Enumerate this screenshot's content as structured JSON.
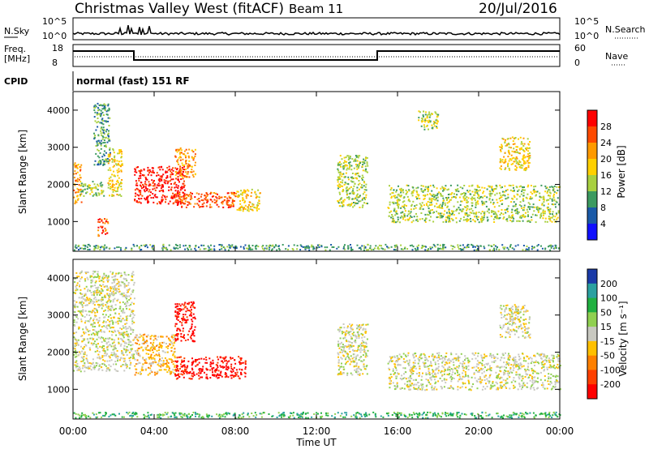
{
  "header": {
    "title": "Christmas Valley West (fitACF)",
    "beam": "Beam 11",
    "date": "20/Jul/2016"
  },
  "nsky_panel": {
    "left_label": "N.Sky",
    "right_label": "N.Search",
    "left_ticks": [
      "10^5",
      "10^0"
    ],
    "right_ticks": [
      "10^5",
      "10^0"
    ]
  },
  "freq_panel": {
    "left_label_1": "Freq.",
    "left_label_2": "[MHz]",
    "right_label": "Nave",
    "left_ticks": [
      "18",
      "8"
    ],
    "right_ticks": [
      "60",
      "0"
    ],
    "freq_steps": [
      {
        "t0": 0,
        "t1": 3.0,
        "level": "high"
      },
      {
        "t0": 3.0,
        "t1": 15.0,
        "level": "low"
      },
      {
        "t0": 15.0,
        "t1": 24.0,
        "level": "high"
      }
    ]
  },
  "cpid": {
    "label": "CPID",
    "text": "normal (fast) 151 RF"
  },
  "chart_data": [
    {
      "type": "heatmap",
      "ylabel": "Slant Range [km]",
      "yticks": [
        "4000",
        "3000",
        "2000",
        "1000"
      ],
      "ytick_values": [
        4000,
        3000,
        2000,
        1000
      ],
      "ylim": [
        200,
        4500
      ],
      "xlim": [
        0,
        24
      ],
      "colorbar_label": "Power [dB]",
      "colorbar_ticks": [
        "28",
        "24",
        "20",
        "16",
        "12",
        "8",
        "4"
      ],
      "colorbar_colors": [
        "#ff0000",
        "#ff4a00",
        "#ff9a00",
        "#ffd000",
        "#a8d040",
        "#3c9a60",
        "#1a5aa8",
        "#1010ff"
      ],
      "regions": [
        {
          "t0": 0.0,
          "t1": 0.4,
          "r0": 1500,
          "r1": 2600,
          "c": 2
        },
        {
          "t0": 0.3,
          "t1": 1.5,
          "r0": 1700,
          "r1": 2100,
          "c": 4
        },
        {
          "t0": 1.0,
          "t1": 1.8,
          "r0": 2500,
          "r1": 4200,
          "c": 5
        },
        {
          "t0": 1.2,
          "t1": 1.7,
          "r0": 600,
          "r1": 1100,
          "c": 1
        },
        {
          "t0": 1.7,
          "t1": 2.4,
          "r0": 1700,
          "r1": 3000,
          "c": 3
        },
        {
          "t0": 3.0,
          "t1": 5.5,
          "r0": 1500,
          "r1": 2500,
          "c": 0
        },
        {
          "t0": 5.0,
          "t1": 8.0,
          "r0": 1400,
          "r1": 1800,
          "c": 1
        },
        {
          "t0": 8.0,
          "t1": 9.2,
          "r0": 1300,
          "r1": 1900,
          "c": 3
        },
        {
          "t0": 5.0,
          "t1": 6.0,
          "r0": 2200,
          "r1": 3000,
          "c": 2
        },
        {
          "t0": 13.0,
          "t1": 14.5,
          "r0": 1400,
          "r1": 2800,
          "c": 4
        },
        {
          "t0": 15.5,
          "t1": 24.0,
          "r0": 1000,
          "r1": 2000,
          "c": 4
        },
        {
          "t0": 17.0,
          "t1": 18.0,
          "r0": 3500,
          "r1": 4000,
          "c": 4
        },
        {
          "t0": 21.0,
          "t1": 22.5,
          "r0": 2400,
          "r1": 3300,
          "c": 3
        },
        {
          "t0": 0.0,
          "t1": 24.0,
          "r0": 250,
          "r1": 400,
          "c": 5
        }
      ],
      "xticks": [
        "00:00",
        "04:00",
        "08:00",
        "12:00",
        "16:00",
        "20:00",
        "00:00"
      ]
    },
    {
      "type": "heatmap",
      "ylabel": "Slant Range [km]",
      "yticks": [
        "4000",
        "3000",
        "2000",
        "1000"
      ],
      "ytick_values": [
        4000,
        3000,
        2000,
        1000
      ],
      "ylim": [
        200,
        4500
      ],
      "xlim": [
        0,
        24
      ],
      "colorbar_label": "Velocity [m s⁻¹]",
      "colorbar_ticks": [
        "200",
        "100",
        "50",
        "15",
        "-15",
        "-50",
        "-100",
        "-200"
      ],
      "colorbar_colors": [
        "#1a3aa8",
        "#2aa0a0",
        "#20b040",
        "#90d050",
        "#c8c8c0",
        "#ffc000",
        "#ff8000",
        "#ff4000",
        "#ff0000"
      ],
      "regions": [
        {
          "t0": 0.0,
          "t1": 3.0,
          "r0": 1500,
          "r1": 4200,
          "c": 4
        },
        {
          "t0": 3.0,
          "t1": 5.0,
          "r0": 1400,
          "r1": 2500,
          "c": 5
        },
        {
          "t0": 5.0,
          "t1": 8.5,
          "r0": 1300,
          "r1": 1900,
          "c": 8
        },
        {
          "t0": 5.0,
          "t1": 6.0,
          "r0": 2300,
          "r1": 3400,
          "c": 8
        },
        {
          "t0": 13.0,
          "t1": 14.5,
          "r0": 1400,
          "r1": 2800,
          "c": 4
        },
        {
          "t0": 15.5,
          "t1": 24.0,
          "r0": 1000,
          "r1": 2000,
          "c": 4
        },
        {
          "t0": 21.0,
          "t1": 22.5,
          "r0": 2400,
          "r1": 3300,
          "c": 4
        },
        {
          "t0": 0.0,
          "t1": 24.0,
          "r0": 250,
          "r1": 400,
          "c": 2
        }
      ],
      "xticks": [
        "00:00",
        "04:00",
        "08:00",
        "12:00",
        "16:00",
        "20:00",
        "00:00"
      ],
      "xlabel": "Time UT"
    }
  ]
}
